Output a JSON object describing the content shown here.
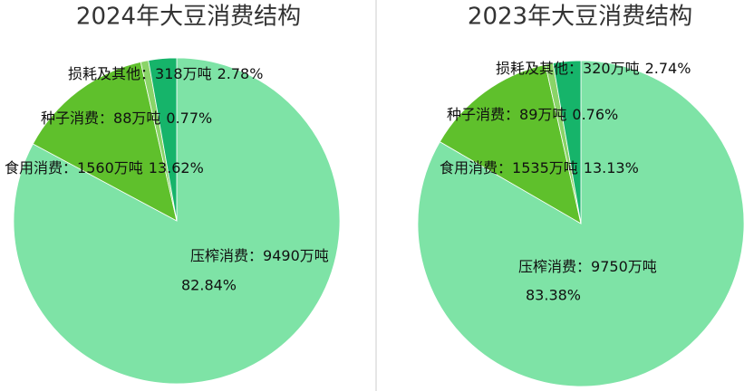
{
  "chart_data": [
    {
      "type": "pie",
      "title": "2024年大豆消费结构",
      "categories": [
        "压榨消费",
        "食用消费",
        "种子消费",
        "损耗及其他"
      ],
      "label_separator": "：",
      "amount_labels": [
        "9490万吨",
        "1560万吨",
        "88万吨",
        "318万吨"
      ],
      "values": [
        82.84,
        13.62,
        0.77,
        2.78
      ],
      "value_labels": [
        "82.84%",
        "13.62%",
        "0.77%",
        "2.78%"
      ],
      "colors": [
        "#7ee3a6",
        "#5fc02c",
        "#8ad468",
        "#16b46a"
      ]
    },
    {
      "type": "pie",
      "title": "2023年大豆消费结构",
      "categories": [
        "压榨消费",
        "食用消费",
        "种子消费",
        "损耗及其他"
      ],
      "label_separator": "：",
      "amount_labels": [
        "9750万吨",
        "1535万吨",
        "89万吨",
        "320万吨"
      ],
      "values": [
        83.38,
        13.13,
        0.76,
        2.74
      ],
      "value_labels": [
        "83.38%",
        "13.13%",
        "0.76%",
        "2.74%"
      ],
      "colors": [
        "#7ee3a6",
        "#5fc02c",
        "#8ad468",
        "#16b46a"
      ]
    }
  ]
}
